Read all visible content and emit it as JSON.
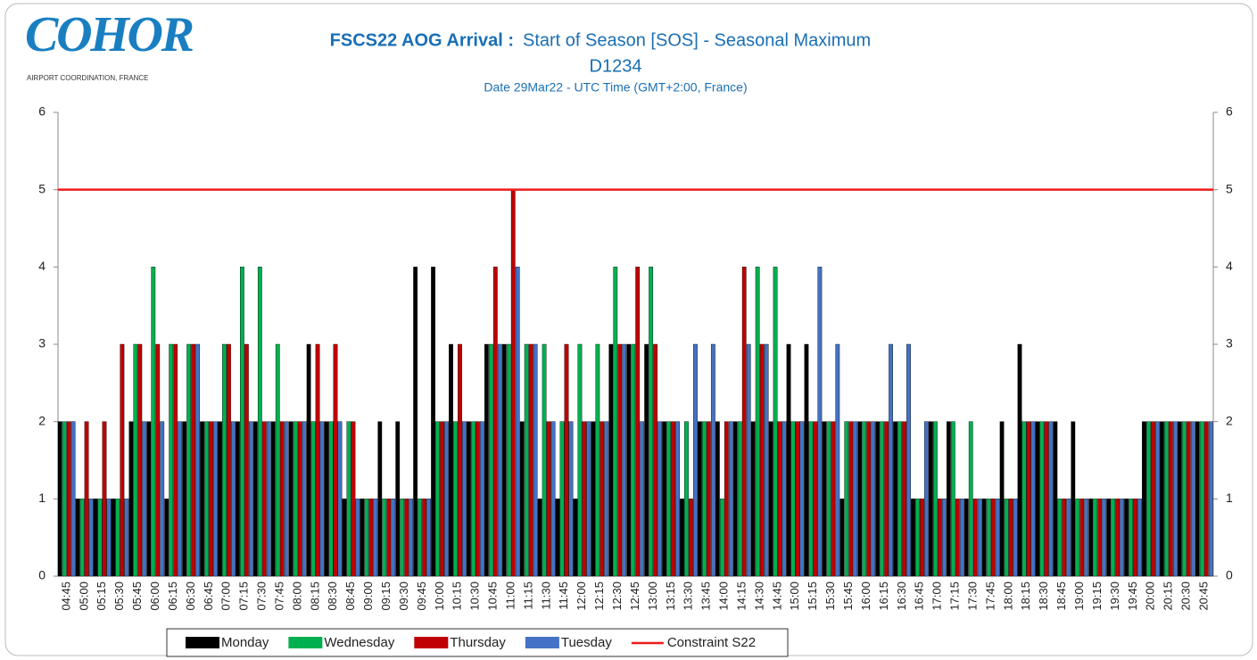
{
  "logo": {
    "name": "COHOR",
    "tagline": "AIRPORT COORDINATION, FRANCE"
  },
  "chart_data": {
    "type": "bar",
    "title_bold": "FSCS22 AOG Arrival :",
    "title": "Start of Season [SOS] - Seasonal Maximum",
    "subtitle": "D1234",
    "note": "Date 29Mar22 - UTC Time (GMT+2:00, France)",
    "categories": [
      "04:45",
      "05:00",
      "05:15",
      "05:30",
      "05:45",
      "06:00",
      "06:15",
      "06:30",
      "06:45",
      "07:00",
      "07:15",
      "07:30",
      "07:45",
      "08:00",
      "08:15",
      "08:30",
      "08:45",
      "09:00",
      "09:15",
      "09:30",
      "09:45",
      "10:00",
      "10:15",
      "10:30",
      "10:45",
      "11:00",
      "11:15",
      "11:30",
      "11:45",
      "12:00",
      "12:15",
      "12:30",
      "12:45",
      "13:00",
      "13:15",
      "13:30",
      "13:45",
      "14:00",
      "14:15",
      "14:30",
      "14:45",
      "15:00",
      "15:15",
      "15:30",
      "15:45",
      "16:00",
      "16:15",
      "16:30",
      "16:45",
      "17:00",
      "17:15",
      "17:30",
      "17:45",
      "18:00",
      "18:15",
      "18:30",
      "18:45",
      "19:00",
      "19:15",
      "19:30",
      "19:45",
      "20:00",
      "20:15",
      "20:30",
      "20:45"
    ],
    "series": [
      {
        "name": "Monday",
        "color": "#000000",
        "values": [
          2,
          1,
          1,
          1,
          2,
          2,
          1,
          2,
          2,
          2,
          2,
          2,
          2,
          2,
          3,
          2,
          1,
          1,
          2,
          2,
          4,
          4,
          3,
          2,
          3,
          3,
          2,
          1,
          1,
          1,
          2,
          3,
          3,
          3,
          2,
          1,
          2,
          2,
          2,
          2,
          2,
          3,
          3,
          2,
          1,
          2,
          2,
          2,
          1,
          2,
          2,
          1,
          1,
          2,
          3,
          2,
          2,
          2,
          1,
          1,
          1,
          2,
          2,
          2,
          2
        ]
      },
      {
        "name": "Wednesday",
        "color": "#00b050",
        "values": [
          2,
          1,
          1,
          1,
          3,
          4,
          3,
          3,
          2,
          3,
          4,
          4,
          3,
          2,
          2,
          2,
          2,
          1,
          1,
          1,
          1,
          2,
          2,
          2,
          3,
          3,
          3,
          3,
          2,
          3,
          3,
          4,
          3,
          4,
          2,
          2,
          2,
          1,
          2,
          4,
          4,
          2,
          2,
          2,
          2,
          2,
          2,
          2,
          1,
          2,
          2,
          2,
          1,
          1,
          2,
          2,
          1,
          1,
          1,
          1,
          1,
          2,
          2,
          2,
          2
        ]
      },
      {
        "name": "Thursday",
        "color": "#c00000",
        "values": [
          2,
          2,
          2,
          3,
          3,
          3,
          3,
          3,
          2,
          3,
          3,
          2,
          2,
          2,
          3,
          3,
          2,
          1,
          1,
          1,
          1,
          2,
          3,
          2,
          4,
          5,
          3,
          2,
          3,
          2,
          2,
          3,
          4,
          3,
          2,
          1,
          2,
          2,
          4,
          3,
          2,
          2,
          2,
          2,
          2,
          2,
          2,
          2,
          1,
          1,
          1,
          1,
          1,
          1,
          2,
          2,
          1,
          1,
          1,
          1,
          1,
          2,
          2,
          2,
          2
        ]
      },
      {
        "name": "Tuesday",
        "color": "#4472c4",
        "values": [
          2,
          1,
          1,
          1,
          2,
          2,
          2,
          3,
          2,
          2,
          2,
          2,
          2,
          2,
          2,
          2,
          1,
          1,
          1,
          1,
          1,
          2,
          2,
          2,
          3,
          4,
          3,
          2,
          2,
          2,
          2,
          3,
          2,
          2,
          2,
          3,
          3,
          2,
          3,
          3,
          2,
          2,
          4,
          3,
          2,
          2,
          3,
          3,
          2,
          1,
          1,
          1,
          1,
          1,
          2,
          2,
          1,
          1,
          1,
          1,
          1,
          2,
          2,
          2,
          2
        ]
      }
    ],
    "constraint": {
      "name": "Constraint S22",
      "color": "#ee1c1c",
      "value": 5
    },
    "ylim": [
      0,
      6
    ],
    "yticks": [
      0,
      1,
      2,
      3,
      4,
      5,
      6
    ],
    "y2lim": [
      0,
      6
    ],
    "y2ticks": [
      0,
      1,
      2,
      3,
      4,
      5,
      6
    ],
    "legend": "bottom"
  }
}
